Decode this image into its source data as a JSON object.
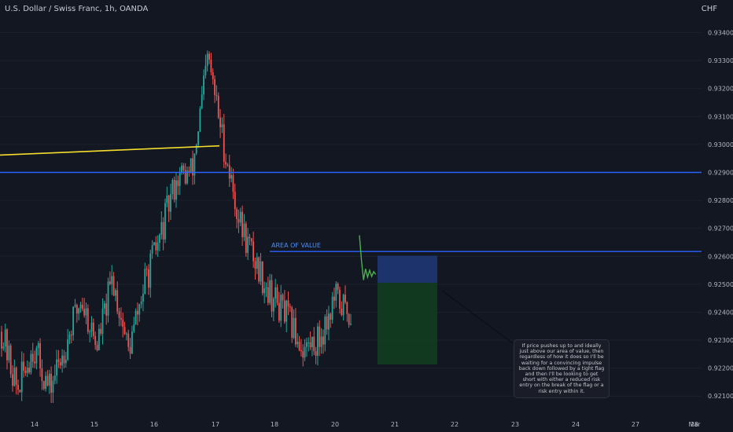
{
  "header": {
    "title": "U.S. Dollar / Swiss Franc, 1h, OANDA",
    "currency": "CHF"
  },
  "annotations": {
    "area_label": "AREA OF VALUE",
    "note": "If price pushes up to and ideally just above our area of value, then regardless of how it does so I'll be waiting for a convincing impulse back down followed by a tight flag and then I'll be looking to get short with either a reduced risk entry on the break of the flag or a risk entry within it."
  },
  "colors": {
    "background": "#131722",
    "up": "#26a69a",
    "down": "#ef5350",
    "level_line": "#2962ff",
    "trend_line": "#f5dd2e",
    "stop_zone": "#1e3a78",
    "target_zone": "#123d1f",
    "projection": "#4caf50",
    "axis_text": "#b2b5be"
  },
  "chart_data": {
    "type": "candlestick",
    "symbol": "USDCHF",
    "timeframe": "1h",
    "x_ticks": [
      "14",
      "15",
      "16",
      "17",
      "18",
      "20",
      "21",
      "22",
      "23",
      "24",
      "27",
      "28",
      "Mar"
    ],
    "y_ticks": [
      "0.93400",
      "0.93300",
      "0.93200",
      "0.93100",
      "0.93000",
      "0.92900",
      "0.92800",
      "0.92700",
      "0.92600",
      "0.92500",
      "0.92400",
      "0.92300",
      "0.92200",
      "0.92100"
    ],
    "ylim": [
      0.9205,
      0.9341
    ],
    "x_range": [
      "Feb 13",
      "Mar 1"
    ],
    "horizontal_levels": [
      0.929,
      0.92617
    ],
    "trend_line": {
      "from": [
        "Feb 13",
        0.92962
      ],
      "to": [
        "Feb 17",
        0.92995
      ]
    },
    "position_box": {
      "entry": 0.92505,
      "stop": 0.92602,
      "target": 0.92213,
      "from": "Feb 21",
      "to": "Feb 22"
    },
    "price_path": [
      [
        "Feb 13",
        0.9233
      ],
      [
        "Feb 13",
        0.9212
      ],
      [
        "Feb 14",
        0.9228
      ],
      [
        "Feb 14",
        0.9212
      ],
      [
        "Feb 15",
        0.9228
      ],
      [
        "Feb 15",
        0.9245
      ],
      [
        "Feb 15",
        0.9228
      ],
      [
        "Feb 16",
        0.9252
      ],
      [
        "Feb 16",
        0.9226
      ],
      [
        "Feb 16",
        0.925
      ],
      [
        "Feb 17",
        0.9267
      ],
      [
        "Feb 17",
        0.9288
      ],
      [
        "Feb 17",
        0.929
      ],
      [
        "Feb 17",
        0.9331
      ],
      [
        "Feb 17",
        0.93
      ],
      [
        "Feb 18",
        0.9272
      ],
      [
        "Feb 20",
        0.9258
      ],
      [
        "Feb 20",
        0.9246
      ],
      [
        "Feb 20",
        0.9238
      ],
      [
        "Feb 20",
        0.9227
      ],
      [
        "Feb 21",
        0.923
      ],
      [
        "Feb 21",
        0.9245
      ],
      [
        "Feb 21",
        0.9239
      ]
    ],
    "projection_path": [
      0.92675,
      0.92585,
      0.92515,
      0.92555,
      0.92525,
      0.9255,
      0.92528,
      0.92545,
      0.92535
    ]
  }
}
